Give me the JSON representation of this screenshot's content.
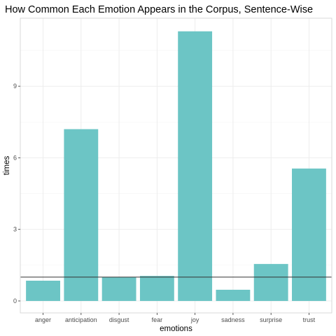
{
  "chart_data": {
    "type": "bar",
    "title": "How Common Each Emotion Appears in the Corpus, Sentence-Wise",
    "xlabel": "emotions",
    "ylabel": "times",
    "categories": [
      "anger",
      "anticipation",
      "disgust",
      "fear",
      "joy",
      "sadness",
      "surprise",
      "trust"
    ],
    "values": [
      0.85,
      7.2,
      1.0,
      1.05,
      11.3,
      0.47,
      1.55,
      5.55
    ],
    "yticks": [
      0,
      3,
      6,
      9
    ],
    "ylim": [
      -0.5,
      11.85
    ],
    "reference_line": 1.0,
    "grid": true,
    "bar_color": "#6cc5c5",
    "reference_line_color": "#333333",
    "panel_border_color": "#d9d9d9",
    "grid_major_color": "#ebebeb",
    "grid_minor_color": "#f5f5f5"
  }
}
